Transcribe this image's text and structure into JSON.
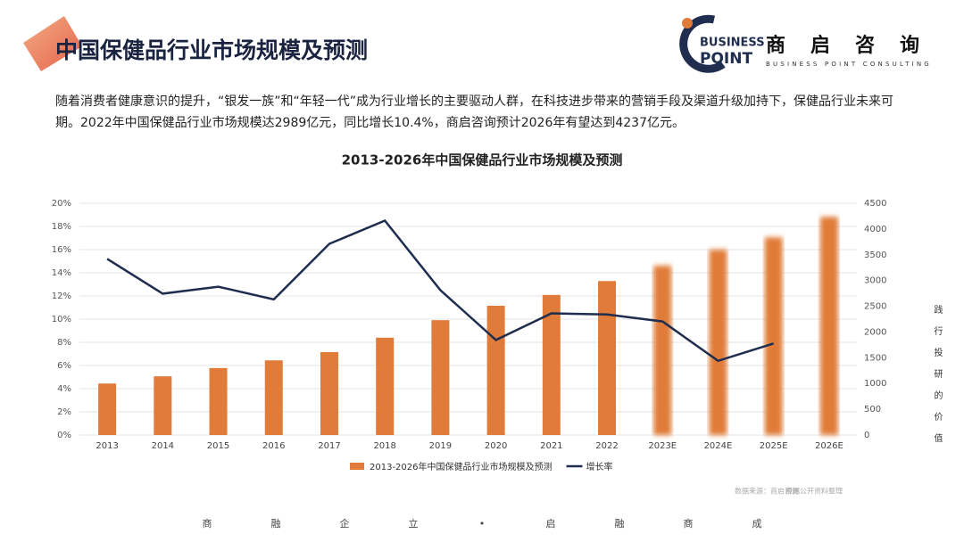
{
  "header": {
    "title": "中国保健品行业市场规模及预测",
    "logo_top": "BUSINESS",
    "logo_bottom": "POINT",
    "logo_name": "商启咨询",
    "logo_tagline": "BUSINESS POINT CONSULTING"
  },
  "description": "随着消费者健康意识的提升，“银发一族”和“年轻一代”成为行业增长的主要驱动人群，在科技进步带来的营销手段及渠道升级加持下，保健品行业未来可期。2022年中国保健品行业市场规模达2989亿元，同比增长10.4%，商启咨询预计2026年有望达到4237亿元。",
  "chart_data": {
    "type": "bar-line",
    "title": "2013-2026年中国保健品行业市场规模及预测",
    "categories": [
      "2013",
      "2014",
      "2015",
      "2016",
      "2017",
      "2018",
      "2019",
      "2020",
      "2021",
      "2022",
      "2023E",
      "2024E",
      "2025E",
      "2026E"
    ],
    "series": [
      {
        "name": "2013-2026年中国保健品行业市场规模及预测",
        "type": "bar",
        "axis": "y2",
        "color": "#e07b39",
        "values": [
          1000,
          1140,
          1300,
          1450,
          1610,
          1890,
          2230,
          2510,
          2720,
          2989,
          3290,
          3600,
          3840,
          4237
        ]
      },
      {
        "name": "增长率",
        "type": "line",
        "axis": "y",
        "color": "#1f2d4e",
        "values": [
          15.2,
          12.2,
          12.8,
          11.7,
          16.5,
          18.5,
          12.5,
          8.2,
          10.5,
          10.4,
          9.8,
          6.4,
          7.9,
          null
        ]
      }
    ],
    "ylim": [
      0,
      20
    ],
    "yticks": [
      {
        "value": 0,
        "label": "0%"
      },
      {
        "value": 2,
        "label": "2%"
      },
      {
        "value": 4,
        "label": "4%"
      },
      {
        "value": 6,
        "label": "6%"
      },
      {
        "value": 8,
        "label": "8%"
      },
      {
        "value": 10,
        "label": "10%"
      },
      {
        "value": 12,
        "label": "12%"
      },
      {
        "value": 14,
        "label": "14%"
      },
      {
        "value": 16,
        "label": "16%"
      },
      {
        "value": 18,
        "label": "18%"
      },
      {
        "value": 20,
        "label": "20%"
      }
    ],
    "y2lim": [
      0,
      4500
    ],
    "y2ticks": [
      0,
      500,
      1000,
      1500,
      2000,
      2500,
      3000,
      3500,
      4000,
      4500
    ],
    "grid": true,
    "legend": "bottom"
  },
  "source": "数据来源：商启咨询",
  "source_note": "根据公开资料整理",
  "side_text": "践行投研的价值",
  "footer": [
    "商",
    "融",
    "企",
    "立",
    "•",
    "启",
    "融",
    "商",
    "成"
  ]
}
